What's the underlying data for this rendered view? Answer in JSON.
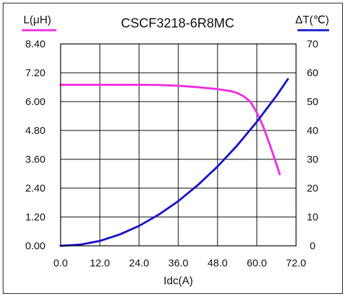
{
  "chart_data": {
    "type": "line",
    "title": "CSCF3218-6R8MC",
    "xlabel": "Idc(A)",
    "ylabel_left": "L(μH)",
    "ylabel_right": "ΔT(℃)",
    "xlim": [
      0,
      72
    ],
    "ylim_left": [
      0,
      8.4
    ],
    "ylim_right": [
      0,
      70
    ],
    "x_ticks": [
      "0.0",
      "12.0",
      "24.0",
      "36.0",
      "48.0",
      "60.0",
      "72.0"
    ],
    "y_left_ticks": [
      "0.00",
      "1.20",
      "2.40",
      "3.60",
      "4.80",
      "6.00",
      "7.20",
      "8.40"
    ],
    "y_right_ticks": [
      "0",
      "10",
      "20",
      "30",
      "40",
      "50",
      "60",
      "70"
    ],
    "grid": true,
    "series": [
      {
        "name": "L(μH)",
        "axis": "left",
        "color": "#ee2ee0",
        "x": [
          0,
          6,
          12,
          18,
          24,
          30,
          36,
          42,
          48,
          52,
          54,
          56,
          58,
          60,
          62,
          64,
          66,
          67
        ],
        "y": [
          6.7,
          6.7,
          6.7,
          6.7,
          6.7,
          6.69,
          6.66,
          6.6,
          6.52,
          6.44,
          6.36,
          6.22,
          6.0,
          5.55,
          4.95,
          4.2,
          3.4,
          2.98
        ]
      },
      {
        "name": "ΔT(℃)",
        "axis": "right",
        "color": "#1a14c8",
        "x": [
          0,
          6,
          12,
          18,
          24,
          30,
          36,
          42,
          48,
          54,
          60,
          66,
          69.5
        ],
        "y": [
          0,
          0.4,
          1.7,
          3.9,
          6.9,
          10.8,
          15.5,
          21.1,
          27.5,
          34.8,
          43.0,
          52.0,
          57.8
        ]
      }
    ]
  }
}
